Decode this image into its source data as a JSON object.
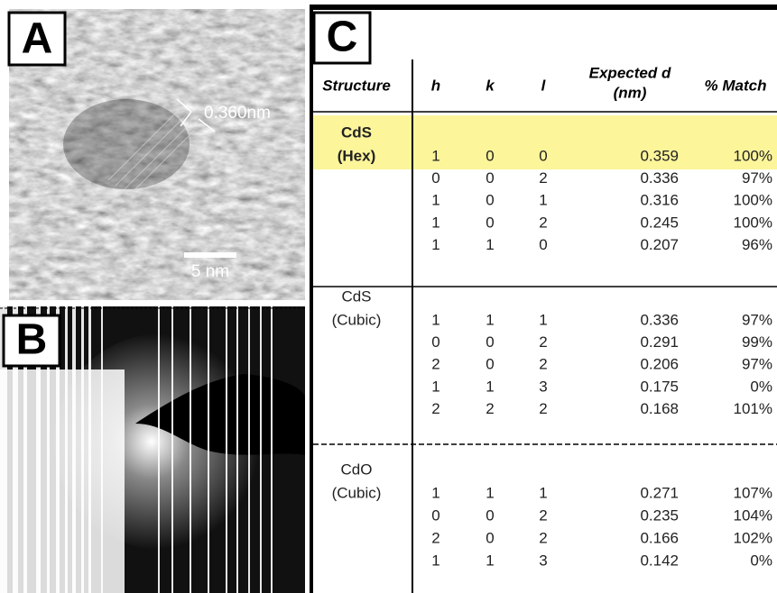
{
  "panels": {
    "a": {
      "label": "A",
      "measurement": "0.360nm",
      "scale_bar": "5 nm"
    },
    "b": {
      "label": "B"
    },
    "c": {
      "label": "C"
    }
  },
  "table": {
    "headers": [
      "Structure",
      "h",
      "k",
      "l",
      [
        "Expected d",
        "(nm)"
      ],
      "% Match"
    ],
    "groups": [
      {
        "structure": [
          "CdS",
          "(Hex)"
        ],
        "rows": [
          [
            "1",
            "0",
            "0",
            "0.359",
            "100%"
          ],
          [
            "0",
            "0",
            "2",
            "0.336",
            "97%"
          ],
          [
            "1",
            "0",
            "1",
            "0.316",
            "100%"
          ],
          [
            "1",
            "0",
            "2",
            "0.245",
            "100%"
          ],
          [
            "1",
            "1",
            "0",
            "0.207",
            "96%"
          ]
        ]
      },
      {
        "structure": [
          "CdS",
          "(Cubic)"
        ],
        "rows": [
          [
            "1",
            "1",
            "1",
            "0.336",
            "97%"
          ],
          [
            "0",
            "0",
            "2",
            "0.291",
            "99%"
          ],
          [
            "2",
            "0",
            "2",
            "0.206",
            "97%"
          ],
          [
            "1",
            "1",
            "3",
            "0.175",
            "0%"
          ],
          [
            "2",
            "2",
            "2",
            "0.168",
            "101%"
          ]
        ]
      },
      {
        "structure": [
          "CdO",
          "(Cubic)"
        ],
        "rows": [
          [
            "1",
            "1",
            "1",
            "0.271",
            "107%"
          ],
          [
            "0",
            "0",
            "2",
            "0.235",
            "104%"
          ],
          [
            "2",
            "0",
            "2",
            "0.166",
            "102%"
          ],
          [
            "1",
            "1",
            "3",
            "0.142",
            "0%"
          ]
        ]
      }
    ]
  }
}
